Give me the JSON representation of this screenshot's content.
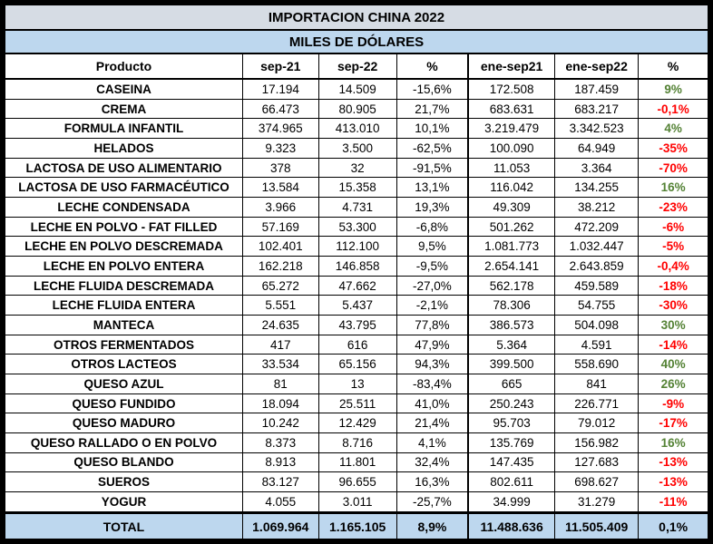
{
  "colors": {
    "positive": "#548235",
    "negative": "#ff0000",
    "title_bg": "#d6dce4",
    "band_bg": "#bdd7ee"
  },
  "chart_data": {
    "type": "table",
    "title": "IMPORTACION CHINA 2022",
    "subtitle": "MILES DE DÓLARES",
    "columns": [
      "Producto",
      "sep-21",
      "sep-22",
      "%",
      "ene-sep21",
      "ene-sep22",
      "%"
    ],
    "rows": [
      {
        "product": "CASEINA",
        "values": [
          "17.194",
          "14.509",
          "-15,6%",
          "172.508",
          "187.459",
          "9%"
        ]
      },
      {
        "product": "CREMA",
        "values": [
          "66.473",
          "80.905",
          "21,7%",
          "683.631",
          "683.217",
          "-0,1%"
        ]
      },
      {
        "product": "FORMULA INFANTIL",
        "values": [
          "374.965",
          "413.010",
          "10,1%",
          "3.219.479",
          "3.342.523",
          "4%"
        ]
      },
      {
        "product": "HELADOS",
        "values": [
          "9.323",
          "3.500",
          "-62,5%",
          "100.090",
          "64.949",
          "-35%"
        ]
      },
      {
        "product": "LACTOSA DE USO ALIMENTARIO",
        "values": [
          "378",
          "32",
          "-91,5%",
          "11.053",
          "3.364",
          "-70%"
        ]
      },
      {
        "product": "LACTOSA DE USO FARMACÉUTICO",
        "values": [
          "13.584",
          "15.358",
          "13,1%",
          "116.042",
          "134.255",
          "16%"
        ]
      },
      {
        "product": "LECHE CONDENSADA",
        "values": [
          "3.966",
          "4.731",
          "19,3%",
          "49.309",
          "38.212",
          "-23%"
        ]
      },
      {
        "product": "LECHE EN POLVO - FAT FILLED",
        "values": [
          "57.169",
          "53.300",
          "-6,8%",
          "501.262",
          "472.209",
          "-6%"
        ]
      },
      {
        "product": "LECHE EN POLVO DESCREMADA",
        "values": [
          "102.401",
          "112.100",
          "9,5%",
          "1.081.773",
          "1.032.447",
          "-5%"
        ]
      },
      {
        "product": "LECHE EN POLVO ENTERA",
        "values": [
          "162.218",
          "146.858",
          "-9,5%",
          "2.654.141",
          "2.643.859",
          "-0,4%"
        ]
      },
      {
        "product": "LECHE FLUIDA DESCREMADA",
        "values": [
          "65.272",
          "47.662",
          "-27,0%",
          "562.178",
          "459.589",
          "-18%"
        ]
      },
      {
        "product": "LECHE FLUIDA ENTERA",
        "values": [
          "5.551",
          "5.437",
          "-2,1%",
          "78.306",
          "54.755",
          "-30%"
        ]
      },
      {
        "product": "MANTECA",
        "values": [
          "24.635",
          "43.795",
          "77,8%",
          "386.573",
          "504.098",
          "30%"
        ]
      },
      {
        "product": "OTROS FERMENTADOS",
        "values": [
          "417",
          "616",
          "47,9%",
          "5.364",
          "4.591",
          "-14%"
        ]
      },
      {
        "product": "OTROS LACTEOS",
        "values": [
          "33.534",
          "65.156",
          "94,3%",
          "399.500",
          "558.690",
          "40%"
        ]
      },
      {
        "product": "QUESO AZUL",
        "values": [
          "81",
          "13",
          "-83,4%",
          "665",
          "841",
          "26%"
        ]
      },
      {
        "product": "QUESO FUNDIDO",
        "values": [
          "18.094",
          "25.511",
          "41,0%",
          "250.243",
          "226.771",
          "-9%"
        ]
      },
      {
        "product": "QUESO MADURO",
        "values": [
          "10.242",
          "12.429",
          "21,4%",
          "95.703",
          "79.012",
          "-17%"
        ]
      },
      {
        "product": "QUESO RALLADO O EN POLVO",
        "values": [
          "8.373",
          "8.716",
          "4,1%",
          "135.769",
          "156.982",
          "16%"
        ]
      },
      {
        "product": "QUESO BLANDO",
        "values": [
          "8.913",
          "11.801",
          "32,4%",
          "147.435",
          "127.683",
          "-13%"
        ]
      },
      {
        "product": "SUEROS",
        "values": [
          "83.127",
          "96.655",
          "16,3%",
          "802.611",
          "698.627",
          "-13%"
        ]
      },
      {
        "product": "YOGUR",
        "values": [
          "4.055",
          "3.011",
          "-25,7%",
          "34.999",
          "31.279",
          "-11%"
        ]
      }
    ],
    "total": {
      "label": "TOTAL",
      "values": [
        "1.069.964",
        "1.165.105",
        "8,9%",
        "11.488.636",
        "11.505.409",
        "0,1%"
      ]
    }
  }
}
